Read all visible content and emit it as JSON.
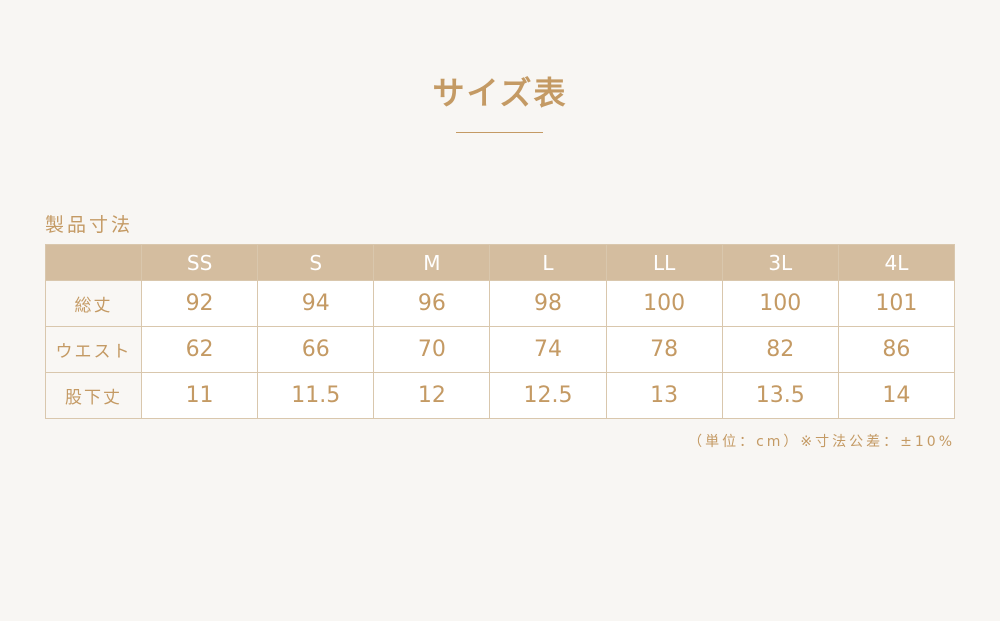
{
  "title": "サイズ表",
  "section_label": "製品寸法",
  "table": {
    "columns": [
      "SS",
      "S",
      "M",
      "L",
      "LL",
      "3L",
      "4L"
    ],
    "rows": [
      {
        "label": "総丈",
        "values": [
          "92",
          "94",
          "96",
          "98",
          "100",
          "100",
          "101"
        ]
      },
      {
        "label": "ウエスト",
        "values": [
          "62",
          "66",
          "70",
          "74",
          "78",
          "82",
          "86"
        ]
      },
      {
        "label": "股下丈",
        "values": [
          "11",
          "11.5",
          "12",
          "12.5",
          "13",
          "13.5",
          "14"
        ]
      }
    ]
  },
  "note": "（単位：cm）※寸法公差：±10%",
  "colors": {
    "accent": "#c49a64",
    "header_bg": "#d4bd9f",
    "background": "#f8f6f3"
  }
}
